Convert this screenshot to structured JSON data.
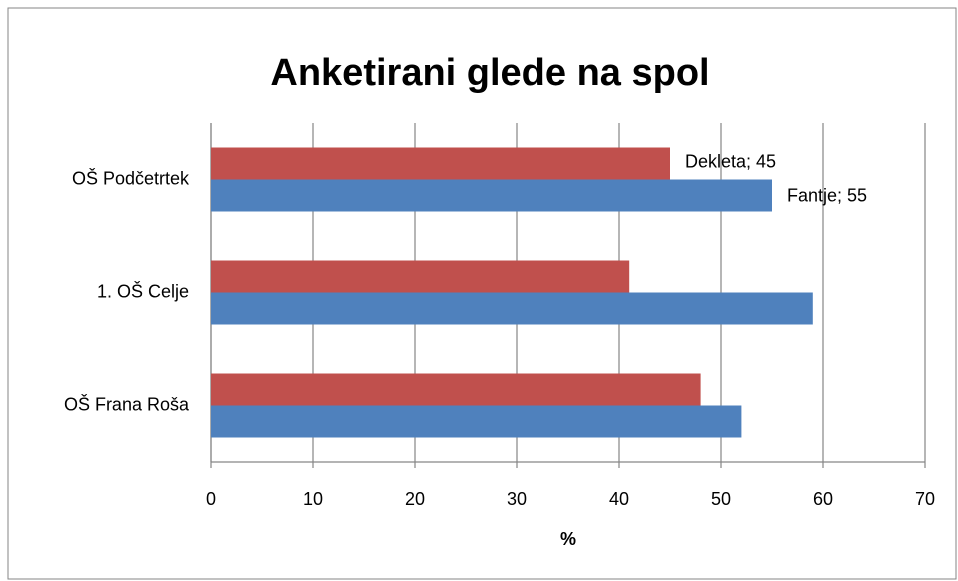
{
  "chart_data": {
    "type": "bar",
    "orientation": "horizontal",
    "title": "Anketirani glede na spol",
    "xlabel": "%",
    "categories": [
      "OŠ Podčetrtek",
      "1. OŠ Celje",
      "OŠ Frana Roša"
    ],
    "series": [
      {
        "name": "Dekleta",
        "color": "#c0504d",
        "values": [
          45,
          41,
          48
        ],
        "value_labels": [
          "Dekleta; 45",
          null,
          null
        ]
      },
      {
        "name": "Fantje",
        "color": "#4f81bd",
        "values": [
          55,
          59,
          52
        ],
        "value_labels": [
          "Fantje; 55",
          null,
          null
        ]
      }
    ],
    "xlim": [
      0,
      70
    ],
    "xticks": [
      0,
      10,
      20,
      30,
      40,
      50,
      60,
      70
    ],
    "grid": true
  }
}
